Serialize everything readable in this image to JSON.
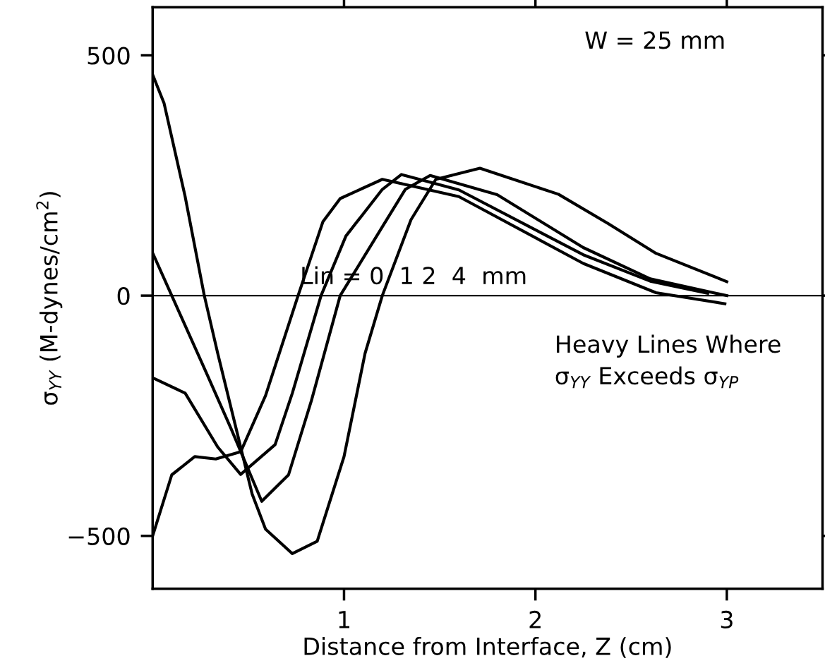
{
  "chart_data": {
    "type": "line",
    "xlabel": "Distance from Interface, Z (cm)",
    "ylabel": "σ$_{YY}$ (M-dynes/cm$^{2}$)",
    "xlim": [
      0,
      3.5
    ],
    "ylim": [
      -610,
      600
    ],
    "xticks": [
      1,
      2,
      3
    ],
    "yticks": [
      {
        "value": -500,
        "label": "−500"
      },
      0,
      500
    ],
    "grid": false,
    "legend": false,
    "marker": "none",
    "line_style": "solid",
    "ref_lines": [
      {
        "axis": "y",
        "value": 0,
        "color": "#000000"
      }
    ],
    "annotations": [
      "W = 25 mm",
      "Lin = 0  1 2  4  mm",
      "Heavy Lines Where\nσ$_{YY}$ Exceeds σ$_{YP}$"
    ],
    "series": [
      {
        "color": "#000000",
        "x": [
          0,
          0.1,
          0.22,
          0.33,
          0.46,
          0.59,
          0.76,
          0.89,
          0.98,
          1.2,
          1.6,
          2.25,
          2.63,
          2.99
        ],
        "values": [
          -500,
          -373,
          -335,
          -340,
          -325,
          -208,
          0,
          154,
          202,
          242,
          206,
          67,
          6,
          -17
        ]
      },
      {
        "color": "#000000",
        "x": [
          0,
          0.17,
          0.34,
          0.46,
          0.64,
          0.73,
          0.88,
          1.01,
          1.2,
          1.3,
          1.6,
          2.25,
          2.6,
          2.9
        ],
        "values": [
          -171,
          -203,
          -315,
          -372,
          -310,
          -203,
          0,
          124,
          221,
          252,
          220,
          85,
          30,
          5
        ]
      },
      {
        "color": "#000000",
        "x": [
          0,
          0.1,
          0.28,
          0.41,
          0.57,
          0.71,
          0.83,
          0.98,
          1.2,
          1.32,
          1.45,
          1.8,
          2.25,
          2.6,
          3.0
        ],
        "values": [
          89,
          0,
          -160,
          -277,
          -428,
          -373,
          -218,
          0,
          143,
          221,
          250,
          210,
          100,
          35,
          0
        ]
      },
      {
        "color": "#000000",
        "x": [
          0,
          0.06,
          0.17,
          0.27,
          0.34,
          0.52,
          0.59,
          0.73,
          0.86,
          1.0,
          1.11,
          1.2,
          1.35,
          1.48,
          1.71,
          2.12,
          2.38,
          2.63,
          3.0
        ],
        "values": [
          460,
          400,
          206,
          0,
          -120,
          -413,
          -486,
          -537,
          -511,
          -335,
          -120,
          0,
          158,
          242,
          265,
          211,
          150,
          88,
          29
        ]
      }
    ]
  }
}
